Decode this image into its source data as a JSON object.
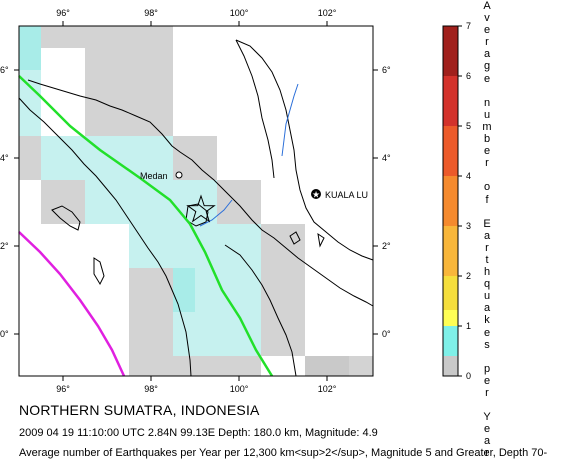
{
  "map": {
    "lon_labels": [
      "96°",
      "98°",
      "100°",
      "102°"
    ],
    "lat_labels": [
      "6°",
      "4°",
      "2°",
      "0°"
    ],
    "cities": [
      {
        "name": "Medan",
        "symbol": "circle-icon"
      },
      {
        "name": "KUALA LU",
        "symbol": "star-circle-icon"
      }
    ],
    "epicenter": {
      "symbol": "star-icon",
      "lat": 2.84,
      "lon": 99.13
    }
  },
  "legend": {
    "title": "Average number of Earthquakes per Year",
    "tick_labels": [
      "7",
      "6",
      "5",
      "4",
      "3",
      "2",
      "1",
      "0"
    ],
    "colors": [
      "#a0201c",
      "#d3322b",
      "#ec5a2a",
      "#f58a2e",
      "#f8b63a",
      "#f5de3c",
      "#ffff55",
      "#7ff0e8"
    ]
  },
  "caption": {
    "title": "NORTHERN SUMATRA, INDONESIA",
    "event": "2009 04 19 11:10:00 UTC 2.84N 99.13E Depth: 180.0 km, Magnitude: 4.9",
    "description": "Average number of Earthquakes per Year per 12,300 km<sup>2</sup>, Magnitude 5 and Greater, Depth 70-"
  }
}
